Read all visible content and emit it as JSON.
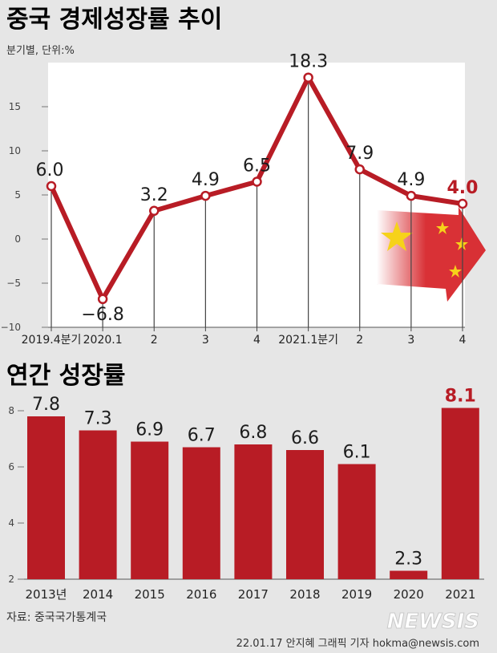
{
  "colors": {
    "background": "#e6e6e6",
    "plot_area": "#ffffff",
    "accent": "#b81c25",
    "text": "#222222",
    "muted": "#555555",
    "flag_red": "#d7262b",
    "flag_star": "#f6d21a"
  },
  "header": {
    "title": "중국 경제성장률 추이",
    "unit": "분기별, 단위:%"
  },
  "annual_header": {
    "title": "연간 성장률"
  },
  "footer": {
    "source": "자료: 중국국가통계국",
    "credit": "22.01.17 안지혜 그래픽 기자 hokma@newsis.com",
    "watermark": "NEWSIS"
  },
  "chart_data": [
    {
      "type": "line",
      "title": "중국 경제성장률 추이",
      "subtitle": "분기별, 단위:%",
      "categories": [
        "2019.4분기",
        "2020.1",
        "2",
        "3",
        "4",
        "2021.1분기",
        "2",
        "3",
        "4"
      ],
      "values": [
        6.0,
        -6.8,
        3.2,
        4.9,
        6.5,
        18.3,
        7.9,
        4.9,
        4.0
      ],
      "value_labels": [
        "6.0",
        "−6.8",
        "3.2",
        "4.9",
        "6.5",
        "18.3",
        "7.9",
        "4.9",
        "4.0"
      ],
      "highlight_index": 8,
      "ylim": [
        -10,
        20
      ],
      "yticks": [
        15,
        10,
        5,
        0,
        -5,
        -10
      ],
      "ytick_labels": [
        "15",
        "10",
        "5",
        "0",
        "−5",
        "−10"
      ],
      "grid": false
    },
    {
      "type": "bar",
      "title": "연간 성장률",
      "categories": [
        "2013년",
        "2014",
        "2015",
        "2016",
        "2017",
        "2018",
        "2019",
        "2020",
        "2021"
      ],
      "values": [
        7.8,
        7.3,
        6.9,
        6.7,
        6.8,
        6.6,
        6.1,
        2.3,
        8.1
      ],
      "value_labels": [
        "7.8",
        "7.3",
        "6.9",
        "6.7",
        "6.8",
        "6.6",
        "6.1",
        "2.3",
        "8.1"
      ],
      "highlight_index": 8,
      "ylim": [
        2,
        8.5
      ],
      "yticks": [
        8,
        6,
        4,
        2
      ],
      "ytick_labels": [
        "8",
        "6",
        "4",
        "2"
      ],
      "grid": false
    }
  ]
}
